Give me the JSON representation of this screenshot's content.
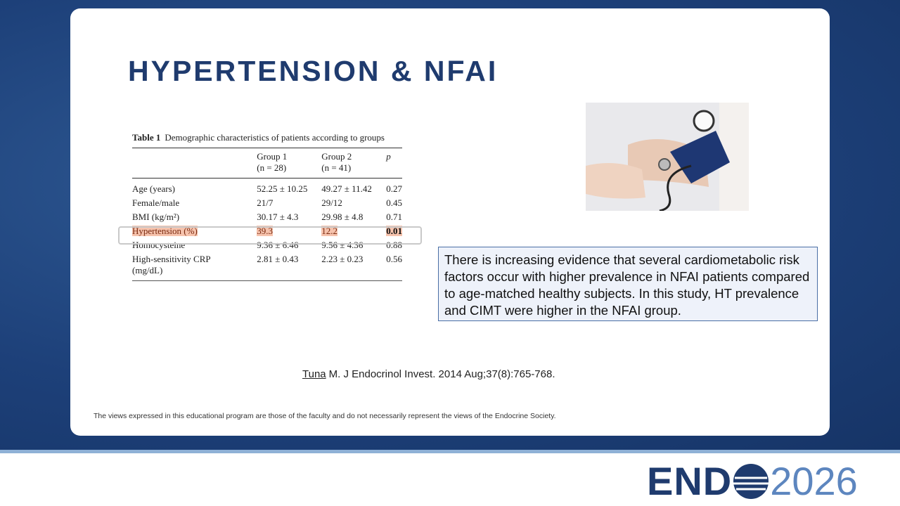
{
  "title": "HYPERTENSION & NFAI",
  "table": {
    "label": "Table 1",
    "caption": "Demographic characteristics of patients according to groups",
    "header": [
      "",
      "Group 1",
      "Group 2",
      "p"
    ],
    "header_sub": [
      "",
      "(n = 28)",
      "(n = 41)",
      ""
    ],
    "rows": [
      [
        "Age (years)",
        "52.25 ± 10.25",
        "49.27 ± 11.42",
        "0.27"
      ],
      [
        "Female/male",
        "21/7",
        "29/12",
        "0.45"
      ],
      [
        "BMI (kg/m²)",
        "30.17 ± 4.3",
        "29.98 ± 4.8",
        "0.71"
      ],
      [
        "Hypertension (%)",
        "39.3",
        "12.2",
        "0.01"
      ],
      [
        "Homocysteine",
        "9.36 ± 6.46",
        "9.56 ± 4.36",
        "0.88"
      ],
      [
        "High-sensitivity CRP (mg/dL)",
        "2.81 ± 0.43",
        "2.23 ± 0.23",
        "0.56"
      ]
    ]
  },
  "note": "There is increasing evidence that several cardiometabolic risk factors occur with higher prevalence in NFAI patients compared to age-matched healthy subjects. In this study, HT prevalence and CIMT were higher in the NFAI group.",
  "citation": {
    "author": "Tuna",
    "source": "M. J Endocrinol Invest. 2014 Aug;37(8):765-768."
  },
  "disclaimer": "The views expressed in this educational program are those of the faculty and do not necessarily represent the views of the Endocrine Society.",
  "logo": {
    "left": "END",
    "right": "2026"
  }
}
